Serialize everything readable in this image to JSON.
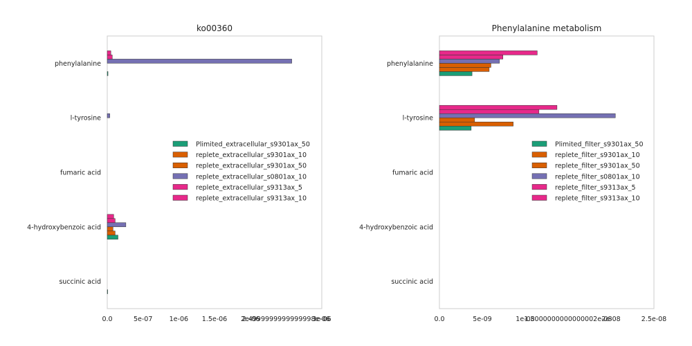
{
  "chart_data": [
    {
      "type": "bar",
      "orientation": "horizontal",
      "title": "ko00360",
      "categories": [
        "phenylalanine",
        "l-tyrosine",
        "fumaric acid",
        "4-hydroxybenzoic acid",
        "succinic acid"
      ],
      "xlim": [
        0,
        3e-06
      ],
      "xticks": [
        0,
        5e-07,
        1e-06,
        1.5e-06,
        2e-06,
        2.5e-06,
        3e-06
      ],
      "xtick_labels": [
        "0.0",
        "5e-07",
        "1e-06",
        "1.5e-06",
        "2e-06",
        "2.4999999999999998e-06",
        "3e-06"
      ],
      "grid": false,
      "legend_position": "center-right",
      "series": [
        {
          "name": "Plimited_extracellular_s9301ax_50",
          "color": "#1b9e77",
          "values": [
            1e-08,
            0,
            0,
            1.5e-07,
            5e-09
          ]
        },
        {
          "name": "replete_extracellular_s9301ax_10",
          "color": "#d95f02",
          "values": [
            0,
            0,
            0,
            1.1e-07,
            0
          ]
        },
        {
          "name": "replete_extracellular_s9301ax_50",
          "color": "#d95f02",
          "values": [
            0,
            0,
            0,
            8e-08,
            0
          ]
        },
        {
          "name": "replete_extracellular_s0801ax_10",
          "color": "#7570b3",
          "values": [
            2.58e-06,
            3.5e-08,
            0,
            2.6e-07,
            0
          ]
        },
        {
          "name": "replete_extracellular_s9313ax_5",
          "color": "#e7298a",
          "values": [
            7e-08,
            0,
            0,
            1.1e-07,
            0
          ]
        },
        {
          "name": "replete_extracellular_s9313ax_10",
          "color": "#e7298a",
          "values": [
            5e-08,
            0,
            0,
            9e-08,
            0
          ]
        }
      ]
    },
    {
      "type": "bar",
      "orientation": "horizontal",
      "title": "Phenylalanine metabolism",
      "categories": [
        "phenylalanine",
        "l-tyrosine",
        "fumaric acid",
        "4-hydroxybenzoic acid",
        "succinic acid"
      ],
      "xlim": [
        0,
        2.5e-08
      ],
      "xticks": [
        0,
        5e-09,
        1e-08,
        1.5e-08,
        2e-08,
        2.5e-08
      ],
      "xtick_labels": [
        "0.0",
        "5e-09",
        "1e-08",
        "1.5000000000000002e-08",
        "2e-08",
        "2.5e-08"
      ],
      "grid": false,
      "legend_position": "center-right",
      "series": [
        {
          "name": "Plimited_filter_s9301ax_50",
          "color": "#1b9e77",
          "values": [
            3.8e-09,
            3.7e-09,
            0,
            0,
            0
          ]
        },
        {
          "name": "replete_filter_s9301ax_10",
          "color": "#d95f02",
          "values": [
            5.8e-09,
            8.6e-09,
            0,
            0,
            0
          ]
        },
        {
          "name": "replete_filter_s9301ax_50",
          "color": "#d95f02",
          "values": [
            6e-09,
            4.1e-09,
            0,
            0,
            0
          ]
        },
        {
          "name": "replete_filter_s0801ax_10",
          "color": "#7570b3",
          "values": [
            7e-09,
            2.05e-08,
            0,
            0,
            0
          ]
        },
        {
          "name": "replete_filter_s9313ax_5",
          "color": "#e7298a",
          "values": [
            7.4e-09,
            1.16e-08,
            0,
            0,
            0
          ]
        },
        {
          "name": "replete_filter_s9313ax_10",
          "color": "#e7298a",
          "values": [
            1.14e-08,
            1.37e-08,
            0,
            0,
            0
          ]
        }
      ]
    }
  ]
}
